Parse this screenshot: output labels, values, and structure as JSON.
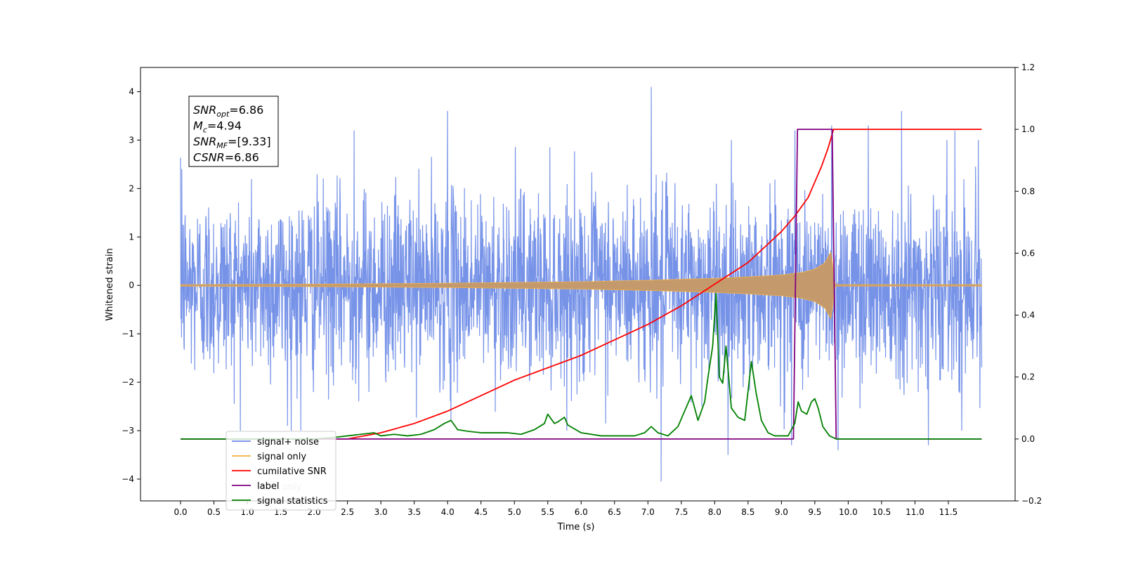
{
  "chart_data": {
    "type": "line",
    "xlabel": "Time (s)",
    "ylabel": "Whitened strain",
    "xlim": [
      -0.6,
      12.5
    ],
    "ylim": [
      -4.45,
      4.5
    ],
    "y2lim": [
      -0.2,
      1.2
    ],
    "xticks": [
      "0.0",
      "0.5",
      "1.0",
      "1.5",
      "2.0",
      "2.5",
      "3.0",
      "3.5",
      "4.0",
      "4.5",
      "5.0",
      "5.5",
      "6.0",
      "6.5",
      "7.0",
      "7.5",
      "8.0",
      "8.5",
      "9.0",
      "9.5",
      "10.0",
      "10.5",
      "11.0",
      "11.5"
    ],
    "yticks": [
      "4",
      "3",
      "2",
      "1",
      "0",
      "−1",
      "−2",
      "−3",
      "−4"
    ],
    "y2ticks": [
      "1.2",
      "1.0",
      "0.8",
      "0.6",
      "0.4",
      "0.2",
      "0.0",
      "−0.2"
    ],
    "annotation": {
      "lines": [
        {
          "base": "SNR",
          "sub": "opt",
          "rest": "=6.86"
        },
        {
          "base": "M",
          "sub": "c",
          "rest": "=4.94"
        },
        {
          "base": "SNR",
          "sub": "MF",
          "rest": "=[9.33]"
        },
        {
          "base": "CSNR",
          "sub": "",
          "rest": "=6.86"
        }
      ]
    },
    "legend": {
      "placement": "lower-left",
      "entries": [
        {
          "label": "signal+ noise",
          "color": "#6b8ae6"
        },
        {
          "label": "signal only",
          "color": "#f5b041"
        },
        {
          "label": "cumilative SNR",
          "color": "#ff0000"
        },
        {
          "label": "label",
          "color": "#800080"
        },
        {
          "label": "signal statistics",
          "color": "#008000"
        }
      ],
      "hidden_text": [
        "label only",
        "alpha only"
      ]
    },
    "series": [
      {
        "name": "signal+ noise",
        "axis": "left",
        "color": "#6b8ae6",
        "x_range": [
          0,
          12
        ],
        "noise_sd": 0.95,
        "spikes": [
          {
            "x": 0.02,
            "y": 2.4
          },
          {
            "x": 1.6,
            "y": -2.9
          },
          {
            "x": 1.8,
            "y": -3.0
          },
          {
            "x": 2.6,
            "y": 3.2
          },
          {
            "x": 4.0,
            "y": 3.6
          },
          {
            "x": 4.05,
            "y": -2.8
          },
          {
            "x": 7.05,
            "y": 4.1
          },
          {
            "x": 7.2,
            "y": -4.05
          },
          {
            "x": 8.2,
            "y": -3.5
          },
          {
            "x": 9.15,
            "y": -3.3
          },
          {
            "x": 9.2,
            "y": 3.2
          },
          {
            "x": 9.75,
            "y": 3.3
          },
          {
            "x": 9.85,
            "y": -3.4
          },
          {
            "x": 10.3,
            "y": 3.3
          },
          {
            "x": 10.8,
            "y": 3.6
          },
          {
            "x": 11.2,
            "y": -3.3
          },
          {
            "x": 11.6,
            "y": 3.2
          },
          {
            "x": 11.95,
            "y": 3.0
          }
        ]
      },
      {
        "name": "signal only",
        "axis": "left",
        "color": "#f5b041",
        "envelope": {
          "x": [
            0,
            2,
            4,
            6,
            7,
            8,
            8.5,
            9,
            9.3,
            9.5,
            9.65,
            9.75,
            9.78,
            9.8,
            12
          ],
          "amp": [
            0.0,
            0.01,
            0.03,
            0.06,
            0.09,
            0.13,
            0.16,
            0.2,
            0.25,
            0.32,
            0.45,
            0.7,
            0.2,
            0.0,
            0.0
          ]
        }
      },
      {
        "name": "cumilative SNR",
        "axis": "right",
        "color": "#ff0000",
        "x": [
          0,
          2.5,
          3,
          3.5,
          4,
          4.5,
          5,
          5.5,
          6,
          6.5,
          7,
          7.5,
          8,
          8.5,
          9,
          9.2,
          9.4,
          9.6,
          9.7,
          9.78,
          12
        ],
        "y": [
          0,
          0.0,
          0.02,
          0.05,
          0.09,
          0.14,
          0.19,
          0.23,
          0.27,
          0.32,
          0.37,
          0.43,
          0.5,
          0.57,
          0.67,
          0.72,
          0.78,
          0.88,
          0.94,
          1.0,
          1.0
        ]
      },
      {
        "name": "label",
        "axis": "right",
        "color": "#800080",
        "x": [
          0,
          9.18,
          9.24,
          9.76,
          9.82,
          12
        ],
        "y": [
          0,
          0,
          1,
          1,
          0,
          0
        ]
      },
      {
        "name": "signal statistics",
        "axis": "right",
        "color": "#008000",
        "x": [
          0,
          2.0,
          2.3,
          2.5,
          2.7,
          2.9,
          3.0,
          3.2,
          3.4,
          3.6,
          3.8,
          3.95,
          4.05,
          4.15,
          4.3,
          4.5,
          4.7,
          4.9,
          5.1,
          5.3,
          5.45,
          5.5,
          5.6,
          5.65,
          5.75,
          5.8,
          6.0,
          6.3,
          6.6,
          6.8,
          6.95,
          7.05,
          7.15,
          7.3,
          7.45,
          7.55,
          7.65,
          7.75,
          7.85,
          7.9,
          7.97,
          8.02,
          8.07,
          8.12,
          8.17,
          8.25,
          8.35,
          8.45,
          8.55,
          8.62,
          8.7,
          8.8,
          8.9,
          9.0,
          9.1,
          9.2,
          9.25,
          9.3,
          9.38,
          9.45,
          9.5,
          9.55,
          9.62,
          9.72,
          9.82,
          12
        ],
        "y": [
          0.0,
          0.0,
          0.005,
          0.01,
          0.015,
          0.02,
          0.01,
          0.015,
          0.01,
          0.015,
          0.03,
          0.05,
          0.06,
          0.03,
          0.025,
          0.02,
          0.02,
          0.02,
          0.015,
          0.03,
          0.05,
          0.08,
          0.05,
          0.055,
          0.07,
          0.045,
          0.02,
          0.01,
          0.01,
          0.01,
          0.02,
          0.04,
          0.02,
          0.01,
          0.04,
          0.09,
          0.14,
          0.06,
          0.12,
          0.2,
          0.3,
          0.47,
          0.2,
          0.18,
          0.3,
          0.1,
          0.07,
          0.06,
          0.25,
          0.15,
          0.06,
          0.02,
          0.01,
          0.01,
          0.01,
          0.05,
          0.12,
          0.09,
          0.08,
          0.12,
          0.13,
          0.1,
          0.04,
          0.01,
          0.0,
          0.0
        ]
      }
    ]
  }
}
